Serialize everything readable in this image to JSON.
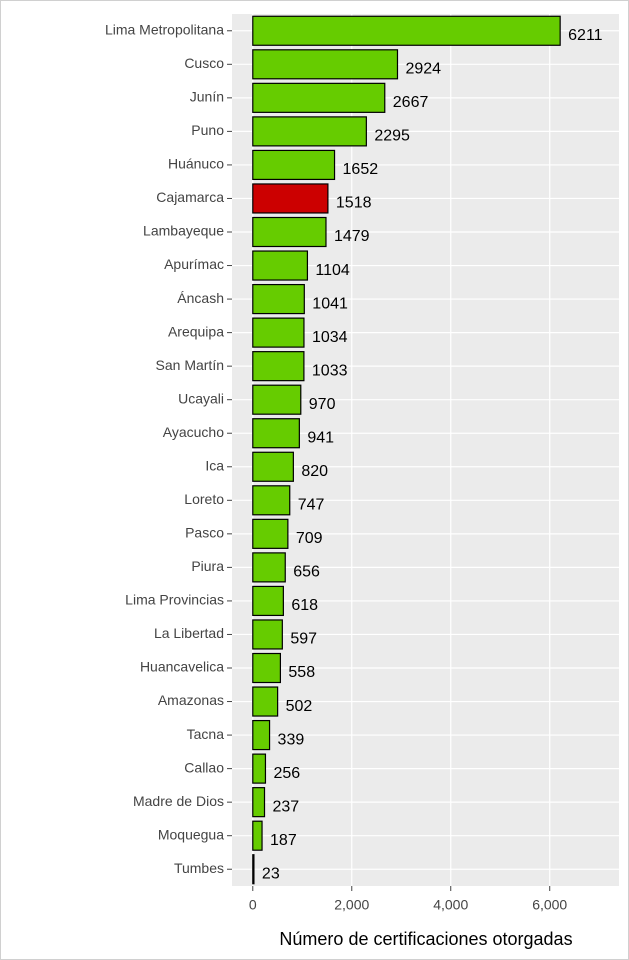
{
  "chart_data": {
    "type": "bar",
    "orientation": "horizontal",
    "x_label": "Número de certificaciones otorgadas",
    "categories": [
      "Lima Metropolitana",
      "Cusco",
      "Junín",
      "Puno",
      "Huánuco",
      "Cajamarca",
      "Lambayeque",
      "Apurímac",
      "Áncash",
      "Arequipa",
      "San Martín",
      "Ucayali",
      "Ayacucho",
      "Ica",
      "Loreto",
      "Pasco",
      "Piura",
      "Lima Provincias",
      "La Libertad",
      "Huancavelica",
      "Amazonas",
      "Tacna",
      "Callao",
      "Madre de Dios",
      "Moquegua",
      "Tumbes"
    ],
    "values": [
      6211,
      2924,
      2667,
      2295,
      1652,
      1518,
      1479,
      1104,
      1041,
      1034,
      1033,
      970,
      941,
      820,
      747,
      709,
      656,
      618,
      597,
      558,
      502,
      339,
      256,
      237,
      187,
      23
    ],
    "colors": [
      "#66cc00",
      "#66cc00",
      "#66cc00",
      "#66cc00",
      "#66cc00",
      "#cc0000",
      "#66cc00",
      "#66cc00",
      "#66cc00",
      "#66cc00",
      "#66cc00",
      "#66cc00",
      "#66cc00",
      "#66cc00",
      "#66cc00",
      "#66cc00",
      "#66cc00",
      "#66cc00",
      "#66cc00",
      "#66cc00",
      "#66cc00",
      "#66cc00",
      "#66cc00",
      "#66cc00",
      "#66cc00",
      "#66cc00"
    ],
    "xlim": [
      -420,
      7400
    ],
    "xticks": [
      0,
      {
        "value": 2000,
        "label": "2,000"
      },
      {
        "value": 4000,
        "label": "4,000"
      },
      {
        "value": 6000,
        "label": "6,000"
      }
    ],
    "grid": true
  }
}
